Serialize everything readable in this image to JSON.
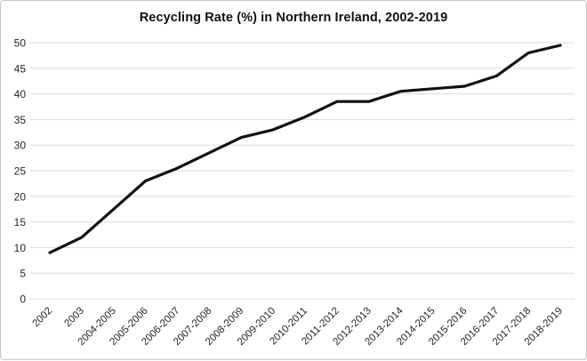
{
  "window": {
    "background": "#ffffff",
    "border_color": "#c6c6c6"
  },
  "chart_data": {
    "type": "line",
    "title": "Recycling Rate (%) in Northern Ireland, 2002-2019",
    "xlabel": "",
    "ylabel": "",
    "categories": [
      "2002",
      "2003",
      "2004-2005",
      "2005-2006",
      "2006-2007",
      "2007-2008",
      "2008-2009",
      "2009-2010",
      "2010-2011",
      "2011-2012",
      "2012-2013",
      "2013-2014",
      "2014-2015",
      "2015-2016",
      "2016-2017",
      "2017-2018",
      "2018-2019"
    ],
    "series": [
      {
        "name": "Recycling rate (%)",
        "values": [
          9,
          12,
          17.5,
          23,
          25.5,
          28.5,
          31.5,
          33,
          35.5,
          38.5,
          38.5,
          40.5,
          41,
          41.5,
          43.5,
          48,
          49.5
        ]
      }
    ],
    "ylim": [
      0,
      50
    ],
    "yticks": [
      0,
      5,
      10,
      15,
      20,
      25,
      30,
      35,
      40,
      45,
      50
    ],
    "grid": "horizontal",
    "legend": "none",
    "markers": "none",
    "line_color": "#111111",
    "line_width": 3.2,
    "grid_color": "#d9d9d9",
    "tick_label_color": "#262626",
    "xtick_rotation_deg": -45
  }
}
